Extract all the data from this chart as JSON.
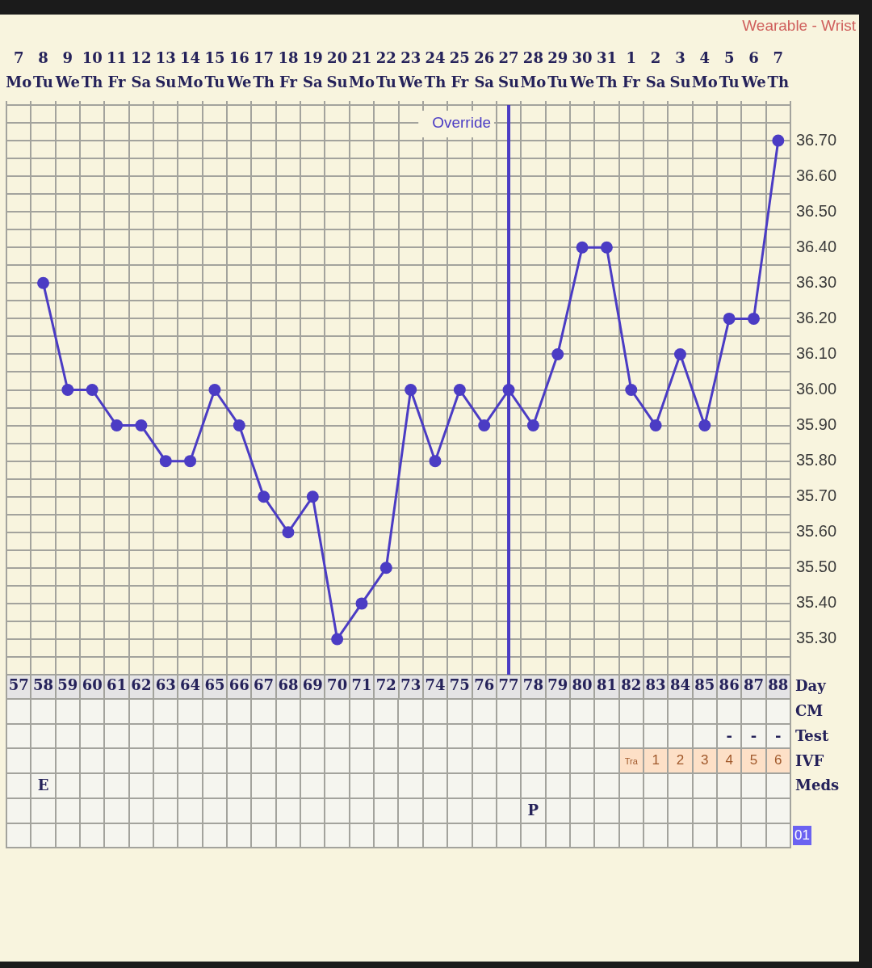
{
  "chart_data": [
    {
      "type": "line",
      "annotations": [
        "Wearable - Wrist"
      ],
      "categories": [
        "7\nMo",
        "8\nTu",
        "9\nWe",
        "10\nTh",
        "11\nFr",
        "12\nSa",
        "13\nSu",
        "14\nMo",
        "15\nTu",
        "16\nWe",
        "17\nTh",
        "18\nFr",
        "19\nSa",
        "20\nSu",
        "21\nMo",
        "22\nTu",
        "23\nWe",
        "24\nTh",
        "25\nFr",
        "26\nSa",
        "27\nSu",
        "28\nMo",
        "29\nTu",
        "30\nWe",
        "31\nTh",
        "1\nFr",
        "2\nSa",
        "3\nSu",
        "4\nMo",
        "5\nTu",
        "6\nWe",
        "7\nTh"
      ],
      "series": [
        {
          "color": "#4b3cc4",
          "values": [
            null,
            36.3,
            36.0,
            36.0,
            35.9,
            35.9,
            35.8,
            35.8,
            36.0,
            35.9,
            35.7,
            35.6,
            35.7,
            35.3,
            35.4,
            35.5,
            36.0,
            35.8,
            36.0,
            35.9,
            36.0,
            35.9,
            36.1,
            36.4,
            36.4,
            36.0,
            35.9,
            36.1,
            35.9,
            36.2,
            36.2,
            36.7
          ]
        }
      ],
      "x2lim": [
        56.5,
        88.5
      ],
      "x2ticks": [
        57,
        58,
        59,
        60,
        61,
        62,
        63,
        64,
        65,
        66,
        67,
        68,
        69,
        70,
        71,
        72,
        73,
        74,
        75,
        76,
        77,
        78,
        79,
        80,
        81,
        82,
        83,
        84,
        85,
        86,
        87,
        88
      ],
      "x2label": "Day",
      "ylim": [
        35.2,
        36.8
      ],
      "yticks": [
        {
          "value": 35.2,
          "label": null
        },
        {
          "value": 35.25,
          "label": null
        },
        {
          "value": 35.3,
          "label": "35.30"
        },
        {
          "value": 35.35,
          "label": null
        },
        {
          "value": 35.4,
          "label": "35.40"
        },
        {
          "value": 35.45,
          "label": null
        },
        {
          "value": 35.5,
          "label": "35.50"
        },
        {
          "value": 35.55,
          "label": null
        },
        {
          "value": 35.6,
          "label": "35.60"
        },
        {
          "value": 35.65,
          "label": null
        },
        {
          "value": 35.7,
          "label": "35.70"
        },
        {
          "value": 35.75,
          "label": null
        },
        {
          "value": 35.8,
          "label": "35.80"
        },
        {
          "value": 35.85,
          "label": null
        },
        {
          "value": 35.9,
          "label": "35.90"
        },
        {
          "value": 35.95,
          "label": null
        },
        {
          "value": 36.0,
          "label": "36.00"
        },
        {
          "value": 36.05,
          "label": null
        },
        {
          "value": 36.1,
          "label": "36.10"
        },
        {
          "value": 36.15,
          "label": null
        },
        {
          "value": 36.2,
          "label": "36.20"
        },
        {
          "value": 36.25,
          "label": null
        },
        {
          "value": 36.3,
          "label": "36.30"
        },
        {
          "value": 36.35,
          "label": null
        },
        {
          "value": 36.4,
          "label": "36.40"
        },
        {
          "value": 36.45,
          "label": null
        },
        {
          "value": 36.5,
          "label": "36.50"
        },
        {
          "value": 36.55,
          "label": null
        },
        {
          "value": 36.6,
          "label": "36.60"
        },
        {
          "value": 36.65,
          "label": null
        },
        {
          "value": 36.7,
          "label": "36.70"
        },
        {
          "value": 36.75,
          "label": null
        },
        {
          "value": 36.8,
          "label": null
        }
      ],
      "grid": true,
      "marker": "circle",
      "ref_lines": [
        {
          "axis": "x",
          "value": "27\nSu",
          "label": "Override",
          "color": "#4b3cc4"
        }
      ]
    },
    {
      "type": "heatmap",
      "categories": [
        null,
        null,
        null,
        null,
        null,
        null,
        null,
        null,
        null,
        null,
        null,
        null,
        null,
        null,
        null,
        null,
        null,
        null,
        null,
        null,
        null,
        null,
        null,
        null,
        null,
        null,
        null,
        null,
        null,
        null,
        null,
        null
      ],
      "tick_labels": "y",
      "y_categories": [
        "CM",
        "Test",
        "IVF",
        "Meds"
      ],
      "cells": [
        [
          null,
          null,
          null,
          null,
          null,
          null,
          null,
          null,
          null,
          null,
          null,
          null,
          null,
          null,
          null,
          null,
          null,
          null,
          null,
          null,
          null,
          null,
          null,
          null,
          null,
          null,
          null,
          null,
          null,
          null,
          null,
          null
        ],
        [
          null,
          null,
          null,
          null,
          null,
          null,
          null,
          null,
          null,
          null,
          null,
          null,
          null,
          null,
          null,
          null,
          null,
          null,
          null,
          null,
          null,
          null,
          null,
          null,
          null,
          null,
          null,
          null,
          null,
          null,
          null,
          null
        ],
        [
          null,
          null,
          null,
          null,
          null,
          null,
          null,
          null,
          null,
          null,
          null,
          null,
          null,
          null,
          null,
          null,
          null,
          null,
          null,
          null,
          null,
          null,
          null,
          null,
          null,
          null,
          null,
          null,
          null,
          null,
          null,
          null
        ],
        [
          null,
          null,
          null,
          null,
          null,
          null,
          null,
          null,
          null,
          null,
          null,
          null,
          null,
          null,
          null,
          null,
          null,
          null,
          null,
          null,
          null,
          null,
          null,
          null,
          null,
          null,
          null,
          null,
          null,
          null,
          null,
          null
        ]
      ],
      "cell_labels": [
        [
          null,
          null,
          null,
          null,
          null,
          null,
          null,
          null,
          null,
          null,
          null,
          null,
          null,
          null,
          null,
          null,
          null,
          null,
          null,
          null,
          null,
          null,
          null,
          null,
          null,
          null,
          null,
          null,
          null,
          null,
          null,
          null
        ],
        [
          null,
          null,
          null,
          null,
          null,
          null,
          null,
          null,
          null,
          null,
          null,
          null,
          null,
          null,
          null,
          null,
          null,
          null,
          null,
          null,
          null,
          null,
          null,
          null,
          null,
          null,
          null,
          null,
          null,
          "-",
          "-",
          "-"
        ],
        [
          null,
          null,
          null,
          null,
          null,
          null,
          null,
          null,
          null,
          null,
          null,
          null,
          null,
          null,
          null,
          null,
          null,
          null,
          null,
          null,
          null,
          null,
          null,
          null,
          null,
          "Tra",
          "1",
          "2",
          "3",
          "4",
          "5",
          "6"
        ],
        [
          null,
          "E",
          null,
          null,
          null,
          null,
          null,
          null,
          null,
          null,
          null,
          null,
          null,
          null,
          null,
          null,
          null,
          null,
          null,
          null,
          null,
          null,
          null,
          null,
          null,
          null,
          null,
          null,
          null,
          null,
          null,
          null
        ]
      ],
      "colors": [
        [
          null,
          null,
          null,
          null,
          null,
          null,
          null,
          null,
          null,
          null,
          null,
          null,
          null,
          null,
          null,
          null,
          null,
          null,
          null,
          null,
          null,
          null,
          null,
          null,
          null,
          null,
          null,
          null,
          null,
          null,
          null,
          null
        ],
        [
          null,
          null,
          null,
          null,
          null,
          null,
          null,
          null,
          null,
          null,
          null,
          null,
          null,
          null,
          null,
          null,
          null,
          null,
          null,
          null,
          null,
          null,
          null,
          null,
          null,
          null,
          null,
          null,
          null,
          null,
          null,
          null
        ],
        [
          null,
          null,
          null,
          null,
          null,
          null,
          null,
          null,
          null,
          null,
          null,
          null,
          null,
          null,
          null,
          null,
          null,
          null,
          null,
          null,
          null,
          null,
          null,
          null,
          null,
          "#fde0c7",
          "#fde0c7",
          "#fde0c7",
          "#fde0c7",
          "#fde0c7",
          "#fde0c7",
          "#fde0c7"
        ],
        [
          null,
          null,
          null,
          null,
          null,
          null,
          null,
          null,
          null,
          null,
          null,
          null,
          null,
          null,
          null,
          null,
          null,
          null,
          null,
          null,
          null,
          null,
          null,
          null,
          null,
          null,
          null,
          null,
          null,
          null,
          null,
          null
        ]
      ]
    },
    {
      "type": "other",
      "categories": [
        null,
        null,
        null,
        null,
        null,
        null,
        null,
        null,
        null,
        null,
        null,
        null,
        null,
        null,
        null,
        null,
        null,
        null,
        null,
        null,
        null,
        null,
        null,
        null,
        null,
        null,
        null,
        null,
        null,
        null,
        null,
        null
      ],
      "cell_labels": [
        [
          null,
          null,
          null,
          null,
          null,
          null,
          null,
          null,
          null,
          null,
          null,
          null,
          null,
          null,
          null,
          null,
          null,
          null,
          null,
          null,
          null,
          "P",
          null,
          null,
          null,
          null,
          null,
          null,
          null,
          null,
          null,
          null
        ],
        [
          null,
          null,
          null,
          null,
          null,
          null,
          null,
          null,
          null,
          null,
          null,
          null,
          null,
          null,
          null,
          null,
          null,
          null,
          null,
          null,
          null,
          null,
          null,
          null,
          null,
          null,
          null,
          null,
          null,
          null,
          null,
          null
        ]
      ],
      "y2_categories": [
        null,
        "01"
      ]
    }
  ]
}
